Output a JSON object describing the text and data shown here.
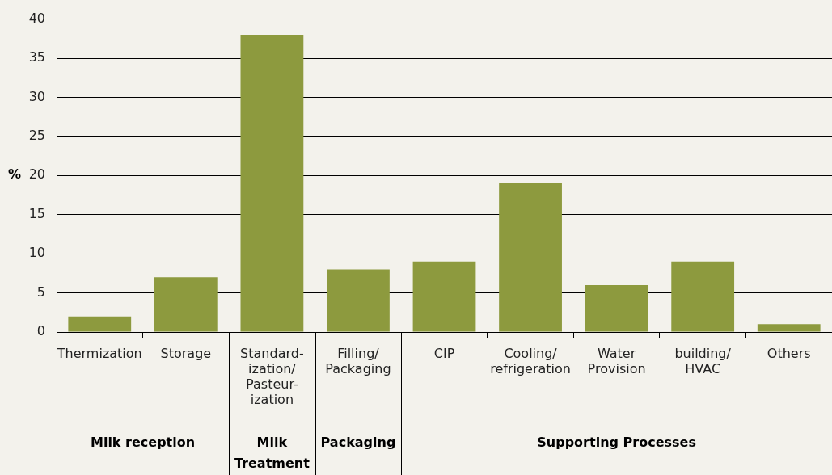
{
  "chart_data": {
    "type": "bar",
    "ylabel": "%",
    "categories": [
      "Thermization",
      "Storage",
      "Standard-\nization/\nPasteur-\nization",
      "Filling/\nPackaging",
      "CIP",
      "Cooling/\nrefrigeration",
      "Water\nProvision",
      "building/\nHVAC",
      "Others"
    ],
    "values": [
      2,
      7,
      38,
      8,
      9,
      19,
      6,
      9,
      1
    ],
    "color": "#8d9a3e",
    "ylim": [
      0,
      40
    ],
    "yticks": [
      0,
      5,
      10,
      15,
      20,
      25,
      30,
      35,
      40
    ],
    "grid": "y",
    "annotations": [
      "Milk reception",
      "Milk\nTreatment",
      "Packaging",
      "Supporting Processes"
    ]
  }
}
